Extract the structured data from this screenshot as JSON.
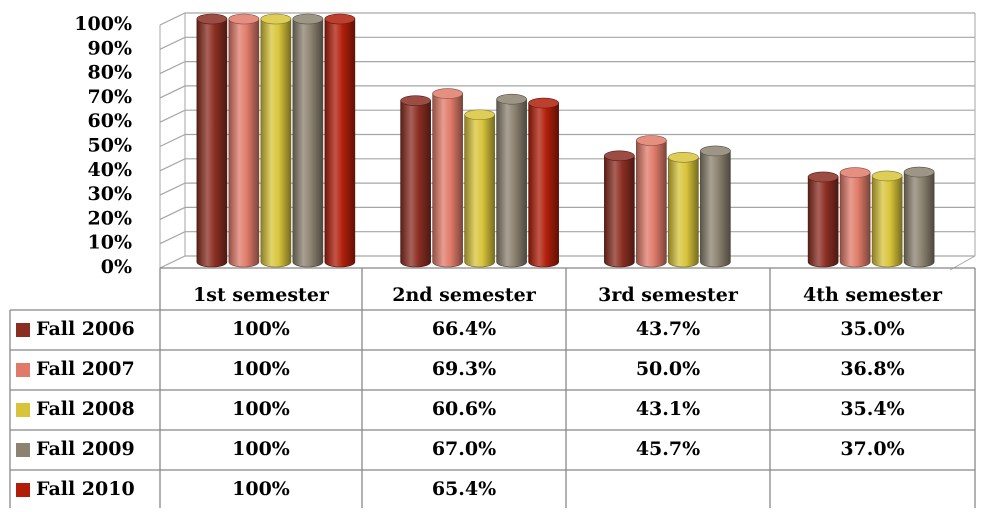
{
  "chart_data": {
    "type": "bar",
    "categories": [
      "1st semester",
      "2nd semester",
      "3rd semester",
      "4th semester"
    ],
    "series": [
      {
        "name": "Fall 2006",
        "color": "#8b2e22",
        "values": [
          100,
          66.4,
          43.7,
          35.0
        ],
        "value_labels": [
          "100%",
          "66.4%",
          "43.7%",
          "35.0%"
        ]
      },
      {
        "name": "Fall 2007",
        "color": "#e07b6a",
        "values": [
          100,
          69.3,
          50.0,
          36.8
        ],
        "value_labels": [
          "100%",
          "69.3%",
          "50.0%",
          "36.8%"
        ]
      },
      {
        "name": "Fall 2008",
        "color": "#d8c43a",
        "values": [
          100,
          60.6,
          43.1,
          35.4
        ],
        "value_labels": [
          "100%",
          "60.6%",
          "43.1%",
          "35.4%"
        ]
      },
      {
        "name": "Fall 2009",
        "color": "#8c8270",
        "values": [
          100,
          67.0,
          45.7,
          37.0
        ],
        "value_labels": [
          "100%",
          "67.0%",
          "45.7%",
          "37.0%"
        ]
      },
      {
        "name": "Fall 2010",
        "color": "#b01e0a",
        "values": [
          100,
          65.4,
          null,
          null
        ],
        "value_labels": [
          "100%",
          "65.4%",
          null,
          null
        ]
      }
    ],
    "ylim": [
      0,
      100
    ],
    "yticks": [
      {
        "value": 0,
        "label": "0%"
      },
      {
        "value": 10,
        "label": "10%"
      },
      {
        "value": 20,
        "label": "20%"
      },
      {
        "value": 30,
        "label": "30%"
      },
      {
        "value": 40,
        "label": "40%"
      },
      {
        "value": 50,
        "label": "50%"
      },
      {
        "value": 60,
        "label": "60%"
      },
      {
        "value": 70,
        "label": "70%"
      },
      {
        "value": 80,
        "label": "80%"
      },
      {
        "value": 90,
        "label": "90%"
      },
      {
        "value": 100,
        "label": "100%"
      }
    ],
    "grid": true
  }
}
